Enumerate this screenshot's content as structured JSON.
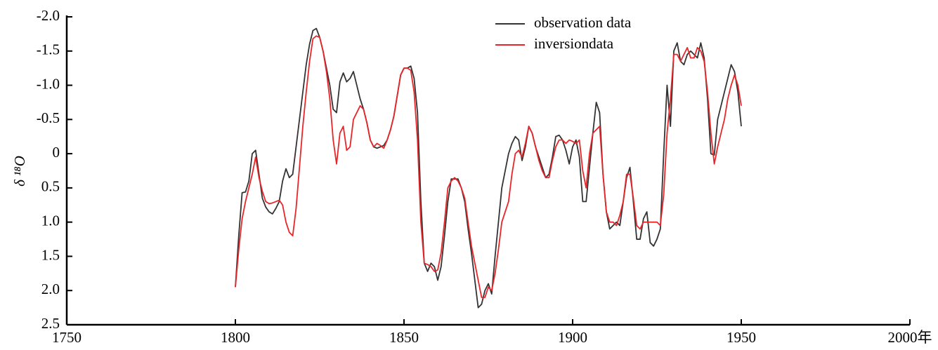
{
  "chart_data": {
    "type": "line",
    "ylabel": "δ ¹⁸O",
    "x": [
      1800,
      1801,
      1802,
      1803,
      1804,
      1805,
      1806,
      1807,
      1808,
      1809,
      1810,
      1811,
      1812,
      1813,
      1814,
      1815,
      1816,
      1817,
      1818,
      1819,
      1820,
      1821,
      1822,
      1823,
      1824,
      1825,
      1826,
      1827,
      1828,
      1829,
      1830,
      1831,
      1832,
      1833,
      1834,
      1835,
      1836,
      1837,
      1838,
      1839,
      1840,
      1841,
      1842,
      1843,
      1844,
      1845,
      1846,
      1847,
      1848,
      1849,
      1850,
      1851,
      1852,
      1853,
      1854,
      1855,
      1856,
      1857,
      1858,
      1859,
      1860,
      1861,
      1862,
      1863,
      1864,
      1865,
      1866,
      1867,
      1868,
      1869,
      1870,
      1871,
      1872,
      1873,
      1874,
      1875,
      1876,
      1877,
      1878,
      1879,
      1880,
      1881,
      1882,
      1883,
      1884,
      1885,
      1886,
      1887,
      1888,
      1889,
      1890,
      1891,
      1892,
      1893,
      1894,
      1895,
      1896,
      1897,
      1898,
      1899,
      1900,
      1901,
      1902,
      1903,
      1904,
      1905,
      1906,
      1907,
      1908,
      1909,
      1910,
      1911,
      1912,
      1913,
      1914,
      1915,
      1916,
      1917,
      1918,
      1919,
      1920,
      1921,
      1922,
      1923,
      1924,
      1925,
      1926,
      1927,
      1928,
      1929,
      1930,
      1931,
      1932,
      1933,
      1934,
      1935,
      1936,
      1937,
      1938,
      1939,
      1940,
      1941,
      1942,
      1943,
      1944,
      1945,
      1946,
      1947,
      1948,
      1949,
      1950
    ],
    "series": [
      {
        "name": "observation data",
        "color": "#333333",
        "values": [
          1.95,
          1.2,
          0.57,
          0.56,
          0.4,
          0.0,
          -0.05,
          0.3,
          0.65,
          0.78,
          0.85,
          0.88,
          0.8,
          0.7,
          0.4,
          0.22,
          0.35,
          0.3,
          -0.1,
          -0.5,
          -0.9,
          -1.3,
          -1.6,
          -1.8,
          -1.83,
          -1.7,
          -1.5,
          -1.25,
          -1.0,
          -0.65,
          -0.6,
          -1.05,
          -1.18,
          -1.05,
          -1.1,
          -1.2,
          -1.0,
          -0.8,
          -0.65,
          -0.45,
          -0.2,
          -0.1,
          -0.08,
          -0.1,
          -0.12,
          -0.2,
          -0.35,
          -0.55,
          -0.85,
          -1.15,
          -1.25,
          -1.25,
          -1.28,
          -1.1,
          -0.6,
          0.7,
          1.6,
          1.72,
          1.6,
          1.65,
          1.85,
          1.65,
          1.2,
          0.7,
          0.37,
          0.37,
          0.37,
          0.5,
          0.7,
          1.1,
          1.45,
          1.85,
          2.25,
          2.2,
          2.0,
          1.9,
          2.05,
          1.5,
          1.0,
          0.5,
          0.25,
          0.0,
          -0.15,
          -0.25,
          -0.2,
          0.1,
          -0.1,
          -0.4,
          -0.3,
          -0.1,
          0.05,
          0.2,
          0.35,
          0.3,
          0.05,
          -0.25,
          -0.27,
          -0.2,
          -0.05,
          0.15,
          -0.1,
          -0.2,
          0.05,
          0.7,
          0.7,
          0.2,
          -0.3,
          -0.75,
          -0.6,
          0.3,
          0.85,
          1.1,
          1.05,
          1.0,
          1.05,
          0.7,
          0.35,
          0.2,
          0.7,
          1.25,
          1.25,
          0.95,
          0.85,
          1.3,
          1.35,
          1.25,
          1.1,
          0.0,
          -1.0,
          -0.4,
          -1.5,
          -1.62,
          -1.35,
          -1.3,
          -1.45,
          -1.5,
          -1.45,
          -1.4,
          -1.62,
          -1.4,
          -0.8,
          0.0,
          0.02,
          -0.5,
          -0.7,
          -0.9,
          -1.1,
          -1.3,
          -1.2,
          -0.9,
          -0.4
        ]
      },
      {
        "name": "inversiondata",
        "color": "#e8262a",
        "values": [
          1.95,
          1.4,
          0.95,
          0.7,
          0.5,
          0.3,
          0.05,
          0.35,
          0.55,
          0.7,
          0.73,
          0.72,
          0.7,
          0.68,
          0.75,
          1.0,
          1.15,
          1.2,
          0.8,
          0.2,
          -0.4,
          -0.9,
          -1.35,
          -1.68,
          -1.72,
          -1.7,
          -1.5,
          -1.2,
          -0.8,
          -0.2,
          0.15,
          -0.3,
          -0.4,
          -0.05,
          -0.1,
          -0.5,
          -0.6,
          -0.7,
          -0.65,
          -0.45,
          -0.2,
          -0.1,
          -0.15,
          -0.12,
          -0.08,
          -0.2,
          -0.35,
          -0.55,
          -0.85,
          -1.15,
          -1.25,
          -1.25,
          -1.22,
          -0.9,
          -0.2,
          1.0,
          1.6,
          1.62,
          1.65,
          1.72,
          1.7,
          1.45,
          1.0,
          0.5,
          0.4,
          0.35,
          0.4,
          0.5,
          0.65,
          1.0,
          1.35,
          1.6,
          1.85,
          2.1,
          2.1,
          1.95,
          2.0,
          1.75,
          1.4,
          1.0,
          0.85,
          0.7,
          0.3,
          0.0,
          -0.05,
          0.05,
          -0.15,
          -0.4,
          -0.3,
          -0.1,
          0.1,
          0.25,
          0.35,
          0.35,
          0.1,
          -0.1,
          -0.2,
          -0.2,
          -0.15,
          -0.2,
          -0.18,
          -0.15,
          -0.2,
          0.25,
          0.5,
          0.0,
          -0.3,
          -0.35,
          -0.4,
          0.3,
          0.85,
          1.0,
          1.0,
          1.05,
          0.9,
          0.7,
          0.3,
          0.3,
          0.65,
          1.05,
          1.1,
          1.0,
          1.0,
          1.0,
          1.0,
          1.0,
          1.05,
          0.6,
          -0.3,
          -0.8,
          -1.45,
          -1.45,
          -1.35,
          -1.45,
          -1.55,
          -1.4,
          -1.4,
          -1.55,
          -1.5,
          -1.35,
          -0.9,
          -0.3,
          0.15,
          -0.1,
          -0.3,
          -0.5,
          -0.8,
          -1.0,
          -1.15,
          -1.0,
          -0.7
        ]
      }
    ],
    "xlim": [
      1750,
      2000
    ],
    "xticks": [
      1750,
      1800,
      1850,
      1900,
      1950,
      {
        "value": 2000,
        "label": "2000年"
      }
    ],
    "ylim": [
      -2.0,
      2.5
    ],
    "yaxis_inverted": true,
    "yticks": [
      {
        "value": -2.0,
        "label": "-2.0"
      },
      {
        "value": -1.5,
        "label": "-1.5"
      },
      {
        "value": -1.0,
        "label": "-1.0"
      },
      {
        "value": -0.5,
        "label": "-0.5"
      },
      0,
      0.5,
      {
        "value": 1.0,
        "label": "1.0"
      },
      1.5,
      {
        "value": 2.0,
        "label": "2.0"
      },
      2.5
    ],
    "grid": false,
    "legend": "upper center"
  }
}
